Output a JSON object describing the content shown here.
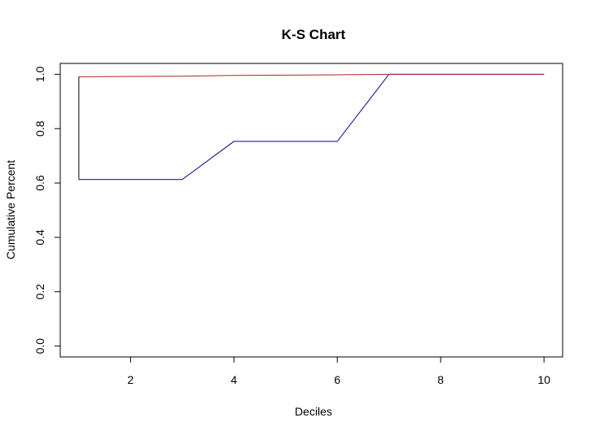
{
  "chart_data": {
    "type": "line",
    "title": "K-S Chart",
    "xlabel": "Deciles",
    "ylabel": "Cumulative Percent",
    "xlim": [
      0.64,
      10.36
    ],
    "ylim": [
      -0.04,
      1.04
    ],
    "x_ticks": [
      2,
      4,
      6,
      8,
      10
    ],
    "y_ticks": [
      0.0,
      0.2,
      0.4,
      0.6,
      0.8,
      1.0
    ],
    "y_tick_labels": [
      "0.0",
      "0.2",
      "0.4",
      "0.6",
      "0.8",
      "1.0"
    ],
    "grid": false,
    "legend": "none",
    "x": [
      1,
      2,
      3,
      4,
      5,
      6,
      7,
      8,
      9,
      10
    ],
    "series": [
      {
        "color": "#00008B",
        "values": [
          0.613,
          0.613,
          0.613,
          0.753,
          0.753,
          0.753,
          1.0,
          1.0,
          1.0,
          1.0
        ]
      },
      {
        "color": "#B22222",
        "values": [
          0.991,
          0.992,
          0.993,
          0.996,
          0.997,
          0.998,
          1.0,
          1.0,
          1.0,
          1.0
        ]
      }
    ],
    "connector": {
      "x": 1,
      "color": "#000000"
    }
  }
}
